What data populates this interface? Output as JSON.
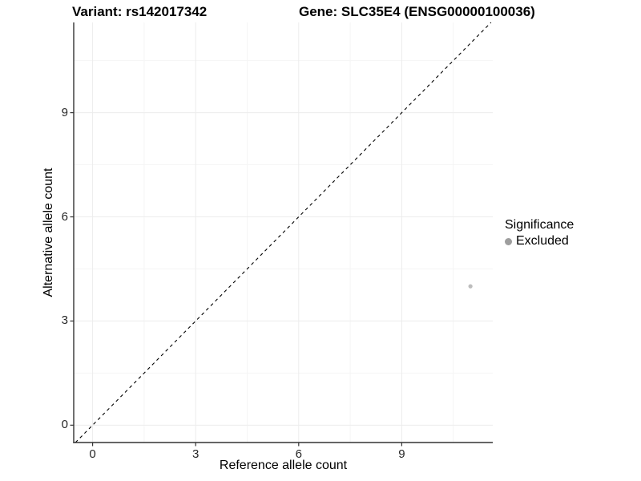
{
  "titles": {
    "variant": "Variant: rs142017342",
    "gene": "Gene: SLC35E4 (ENSG00000100036)"
  },
  "chart_data": {
    "type": "scatter",
    "title_left": "Variant: rs142017342",
    "title_right": "Gene: SLC35E4 (ENSG00000100036)",
    "xlabel": "Reference allele count",
    "ylabel": "Alternative allele count",
    "x_ticks": [
      0,
      3,
      6,
      9
    ],
    "y_ticks": [
      0,
      3,
      6,
      9
    ],
    "minor_breaks": [
      1.5,
      4.5,
      7.5,
      10.5
    ],
    "xlim": [
      -0.55,
      11.65
    ],
    "ylim": [
      -0.5,
      11.6
    ],
    "grid": true,
    "identity_line": {
      "present": true,
      "style": "dashed",
      "color": "#000000"
    },
    "series": [
      {
        "name": "Excluded",
        "color": "#bdbdbd",
        "point_radius": 2.6,
        "points": [
          [
            11,
            4
          ]
        ]
      }
    ],
    "legend": {
      "position": "right",
      "title": "Significance",
      "items": [
        {
          "label": "Excluded",
          "color": "#9e9e9e"
        }
      ]
    },
    "colors": {
      "background": "#ffffff",
      "grid_major": "#ececec",
      "grid_minor": "#f5f5f5",
      "axis_line": "#333333",
      "tick_mark": "#333333"
    }
  }
}
